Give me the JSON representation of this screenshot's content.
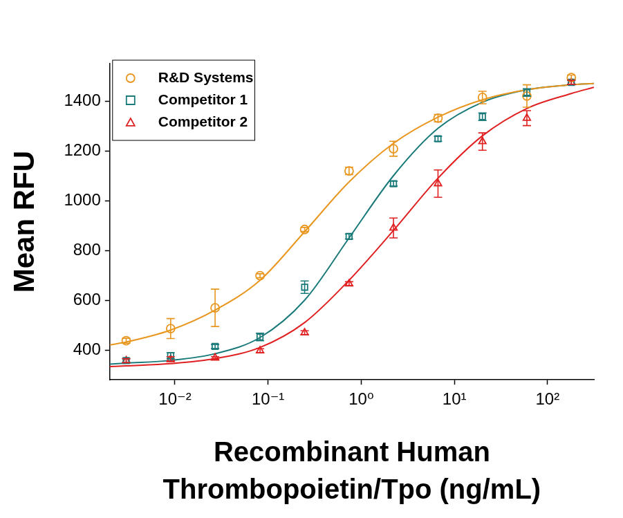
{
  "chart_data": {
    "type": "scatter",
    "x_label": [
      "Recombinant Human",
      "Thrombopoietin/Tpo (ng/mL)"
    ],
    "y_label": "Mean RFU",
    "log": "x",
    "grid": false,
    "legend": "upper left",
    "xlim": [
      0.002,
      315
    ],
    "ylim": [
      280,
      1550
    ],
    "xticks": [
      {
        "value": 0.01,
        "label": "10⁻²"
      },
      {
        "value": 0.1,
        "label": "10⁻¹"
      },
      {
        "value": 1,
        "label": "10⁰"
      },
      {
        "value": 10,
        "label": "10¹"
      },
      {
        "value": 100,
        "label": "10²"
      }
    ],
    "yticks": [
      400,
      600,
      800,
      1000,
      1200,
      1400
    ],
    "x": [
      0.003,
      0.009,
      0.027,
      0.082,
      0.247,
      0.741,
      2.22,
      6.67,
      20,
      60,
      180
    ],
    "fit_x": [
      0.002,
      0.003,
      0.009,
      0.027,
      0.082,
      0.247,
      0.741,
      2.22,
      6.67,
      20,
      60,
      180,
      315
    ],
    "series": [
      {
        "name": "R&D Systems",
        "color": "#e8961e",
        "marker": "circle",
        "values": [
          437,
          486,
          569,
          698,
          884,
          1119,
          1208,
          1331,
          1414,
          1420,
          1494
        ],
        "errors": [
          10,
          40,
          75,
          8,
          8,
          15,
          30,
          15,
          25,
          45,
          10
        ],
        "fit": [
          420,
          432,
          480,
          560,
          680,
          875,
          1075,
          1230,
          1335,
          1405,
          1445,
          1465,
          1470
        ]
      },
      {
        "name": "Competitor 1",
        "color": "#1a7a7a",
        "marker": "square",
        "values": [
          357,
          377,
          414,
          452,
          652,
          856,
          1068,
          1248,
          1337,
          1434,
          1475
        ],
        "errors": [
          8,
          12,
          8,
          15,
          25,
          10,
          10,
          10,
          15,
          15,
          8
        ],
        "fit": [
          343,
          347,
          358,
          385,
          450,
          600,
          850,
          1100,
          1290,
          1395,
          1445,
          1465,
          1470
        ]
      },
      {
        "name": "Competitor 2",
        "color": "#e02020",
        "marker": "triangle",
        "values": [
          357,
          363,
          368,
          397,
          469,
          666,
          890,
          1068,
          1237,
          1331,
          1475
        ],
        "errors": [
          8,
          10,
          5,
          8,
          8,
          8,
          40,
          55,
          35,
          30,
          8
        ],
        "fit": [
          333,
          336,
          345,
          365,
          410,
          510,
          680,
          880,
          1090,
          1260,
          1370,
          1430,
          1455
        ]
      }
    ]
  }
}
